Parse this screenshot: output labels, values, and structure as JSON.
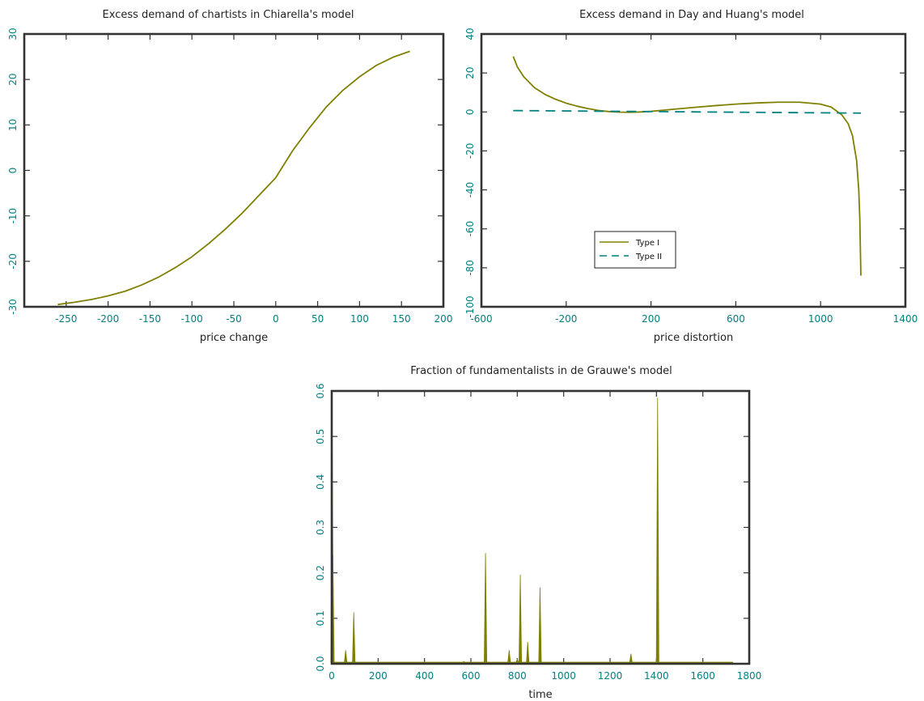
{
  "colors": {
    "olive": "#808000",
    "teal": "#008080",
    "axis": "#333333",
    "text": "#222222"
  },
  "chart_data": [
    {
      "type": "line",
      "title": "Excess demand of chartists in Chiarella's model",
      "xlabel": "price change",
      "ylabel": "",
      "xlim": [
        -300,
        200
      ],
      "ylim": [
        -30,
        30
      ],
      "xticks": [
        -250,
        -200,
        -150,
        -100,
        -50,
        0,
        50,
        100,
        150,
        200
      ],
      "xtick_labels": [
        "-250",
        "-200",
        "-150",
        "-100",
        "-50",
        "0",
        "50",
        "100",
        "150",
        "200"
      ],
      "yticks": [
        -30,
        -20,
        -10,
        0,
        10,
        20,
        30
      ],
      "ytick_labels": [
        "-30",
        "-20",
        "-10",
        "0",
        "10",
        "20",
        "30"
      ],
      "grid": false,
      "series": [
        {
          "color": "#808000",
          "dash": "solid",
          "x": [
            -260,
            -240,
            -220,
            -200,
            -180,
            -160,
            -140,
            -120,
            -100,
            -80,
            -60,
            -40,
            -20,
            0,
            20,
            40,
            60,
            80,
            100,
            120,
            140,
            160
          ],
          "y": [
            -29.5,
            -29.0,
            -28.4,
            -27.6,
            -26.6,
            -25.2,
            -23.5,
            -21.4,
            -19.0,
            -16.1,
            -12.9,
            -9.4,
            -5.5,
            -1.6,
            4.3,
            9.3,
            13.9,
            17.6,
            20.6,
            23.1,
            24.9,
            26.2
          ]
        }
      ]
    },
    {
      "type": "line",
      "title": "Excess demand in Day and Huang's model",
      "xlabel": "price distortion",
      "ylabel": "",
      "xlim": [
        -600,
        1400
      ],
      "ylim": [
        -100,
        40
      ],
      "xticks": [
        -600,
        -200,
        200,
        600,
        1000,
        1400
      ],
      "xtick_labels": [
        "-600",
        "-200",
        "200",
        "600",
        "1000",
        "1400"
      ],
      "yticks": [
        -100,
        -80,
        -60,
        -40,
        -20,
        0,
        20,
        40
      ],
      "ytick_labels": [
        "-100",
        "-80",
        "-60",
        "-40",
        "-20",
        "0",
        "20",
        "40"
      ],
      "grid": false,
      "legend": {
        "placement": "lower-left",
        "entries": [
          "Type I",
          "Type II"
        ]
      },
      "series": [
        {
          "name": "Type I",
          "color": "#808000",
          "dash": "solid",
          "x": [
            -450,
            -430,
            -400,
            -350,
            -300,
            -250,
            -200,
            -150,
            -100,
            -50,
            0,
            50,
            100,
            150,
            200,
            300,
            400,
            500,
            600,
            700,
            800,
            900,
            1000,
            1050,
            1100,
            1130,
            1150,
            1170,
            1180,
            1185,
            1190
          ],
          "y": [
            28.5,
            23,
            18,
            12.5,
            9,
            6.5,
            4.5,
            3,
            1.8,
            0.8,
            0.2,
            -0.1,
            -0.2,
            0,
            0.3,
            1.3,
            2.3,
            3.2,
            4.0,
            4.6,
            5.0,
            5.0,
            4.0,
            2.5,
            -1.5,
            -6,
            -12,
            -25,
            -40,
            -55,
            -84
          ]
        },
        {
          "name": "Type II",
          "color": "#008080",
          "dash": "dashed",
          "x": [
            -450,
            1190
          ],
          "y": [
            0.7,
            -0.6
          ]
        }
      ]
    },
    {
      "type": "line",
      "title": "Fraction of fundamentalists in de Grauwe's model",
      "xlabel": "time",
      "ylabel": "",
      "xlim": [
        0,
        1800
      ],
      "ylim": [
        0,
        0.6
      ],
      "xticks": [
        0,
        200,
        400,
        600,
        800,
        1000,
        1200,
        1400,
        1600,
        1800
      ],
      "xtick_labels": [
        "0",
        "200",
        "400",
        "600",
        "800",
        "1000",
        "1200",
        "1400",
        "1600",
        "1800"
      ],
      "yticks": [
        0,
        0.1,
        0.2,
        0.3,
        0.4,
        0.5,
        0.6
      ],
      "ytick_labels": [
        "0.0",
        "0.1",
        "0.2",
        "0.3",
        "0.4",
        "0.5",
        "0.6"
      ],
      "grid": false,
      "baseline": 0.003,
      "series": [
        {
          "color": "#808000",
          "dash": "solid",
          "spikes": [
            {
              "x": 2,
              "y": 0.49
            },
            {
              "x": 5,
              "y": 0.24
            },
            {
              "x": 60,
              "y": 0.03
            },
            {
              "x": 95,
              "y": 0.113
            },
            {
              "x": 570,
              "y": 0.005
            },
            {
              "x": 663,
              "y": 0.244
            },
            {
              "x": 765,
              "y": 0.03
            },
            {
              "x": 800,
              "y": 0.01
            },
            {
              "x": 813,
              "y": 0.196
            },
            {
              "x": 845,
              "y": 0.048
            },
            {
              "x": 898,
              "y": 0.168
            },
            {
              "x": 1290,
              "y": 0.022
            },
            {
              "x": 1405,
              "y": 0.585
            }
          ]
        }
      ]
    }
  ]
}
